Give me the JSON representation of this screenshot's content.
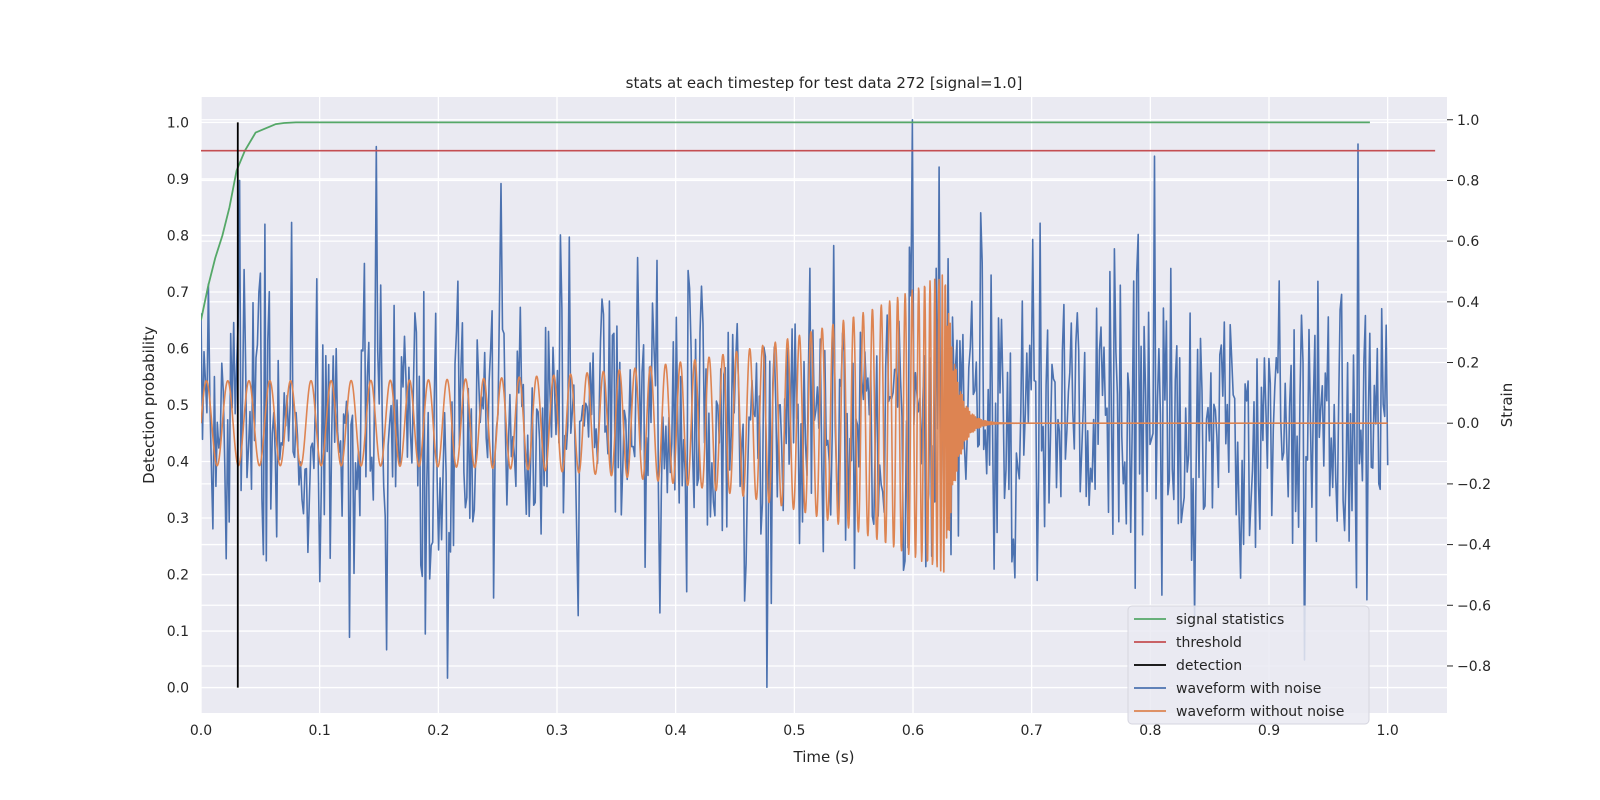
{
  "chart_data": {
    "type": "line",
    "title": "stats at each timestep for test data 272 [signal=1.0]",
    "xlabel": "Time (s)",
    "ylabel": "Detection probability",
    "y2label": "Strain",
    "xlim": [
      0.0,
      1.05
    ],
    "ylim": [
      -0.045,
      1.045
    ],
    "y2lim": [
      -0.955,
      1.075
    ],
    "xticks": [
      "0.0",
      "0.1",
      "0.2",
      "0.3",
      "0.4",
      "0.5",
      "0.6",
      "0.7",
      "0.8",
      "0.9",
      "1.0"
    ],
    "yticks": [
      "0.0",
      "0.1",
      "0.2",
      "0.3",
      "0.4",
      "0.5",
      "0.6",
      "0.7",
      "0.8",
      "0.9",
      "1.0"
    ],
    "y2ticks": [
      "−0.8",
      "−0.6",
      "−0.4",
      "−0.2",
      "0.0",
      "0.2",
      "0.4",
      "0.6",
      "0.8",
      "1.0"
    ],
    "grid": true,
    "legend_position": "lower-right",
    "colors": {
      "signal": "#55a868",
      "threshold": "#c44e52",
      "detection": "#000000",
      "noisy": "#4c72b0",
      "clean": "#dd8452",
      "background": "#eaeaf2",
      "grid": "#ffffff"
    },
    "signal_statistics": {
      "x": [
        0.0,
        0.006,
        0.012,
        0.018,
        0.024,
        0.03,
        0.037,
        0.046,
        0.055,
        0.063,
        0.07,
        0.08,
        0.1,
        0.2,
        0.4,
        0.6,
        0.8,
        0.985
      ],
      "y": [
        0.65,
        0.71,
        0.76,
        0.8,
        0.85,
        0.915,
        0.95,
        0.982,
        0.99,
        0.997,
        0.999,
        1.0,
        1.0,
        1.0,
        1.0,
        1.0,
        1.0,
        1.0
      ]
    },
    "threshold": {
      "value": 0.95,
      "x_range": [
        0.0,
        1.04
      ]
    },
    "detection": {
      "x": 0.031,
      "y_range": [
        0.0,
        1.0
      ]
    },
    "waveform_with_noise": {
      "x_range": [
        0.0,
        1.0
      ],
      "n_points": 800,
      "approx_std": 0.26,
      "peaks": [
        {
          "x": 0.6,
          "y": 1.0
        },
        {
          "x": 0.803,
          "y": 0.88
        },
        {
          "x": 0.253,
          "y": 0.79
        },
        {
          "x": 0.033,
          "y": 0.8
        },
        {
          "x": 0.208,
          "y": -0.84
        },
        {
          "x": 0.477,
          "y": -0.87
        },
        {
          "x": 0.93,
          "y": -0.78
        }
      ]
    },
    "waveform_without_noise": {
      "x_range": [
        0.0,
        1.0
      ],
      "base_amplitude": 0.14,
      "amplitude_at_merger": 0.5,
      "base_frequency_hz": 55,
      "merger_time": 0.628,
      "ringdown_end": 0.665
    },
    "legend": [
      {
        "label": "signal statistics",
        "key": "signal"
      },
      {
        "label": "threshold",
        "key": "threshold"
      },
      {
        "label": "detection",
        "key": "detection"
      },
      {
        "label": "waveform with noise",
        "key": "noisy"
      },
      {
        "label": "waveform without noise",
        "key": "clean"
      }
    ]
  }
}
